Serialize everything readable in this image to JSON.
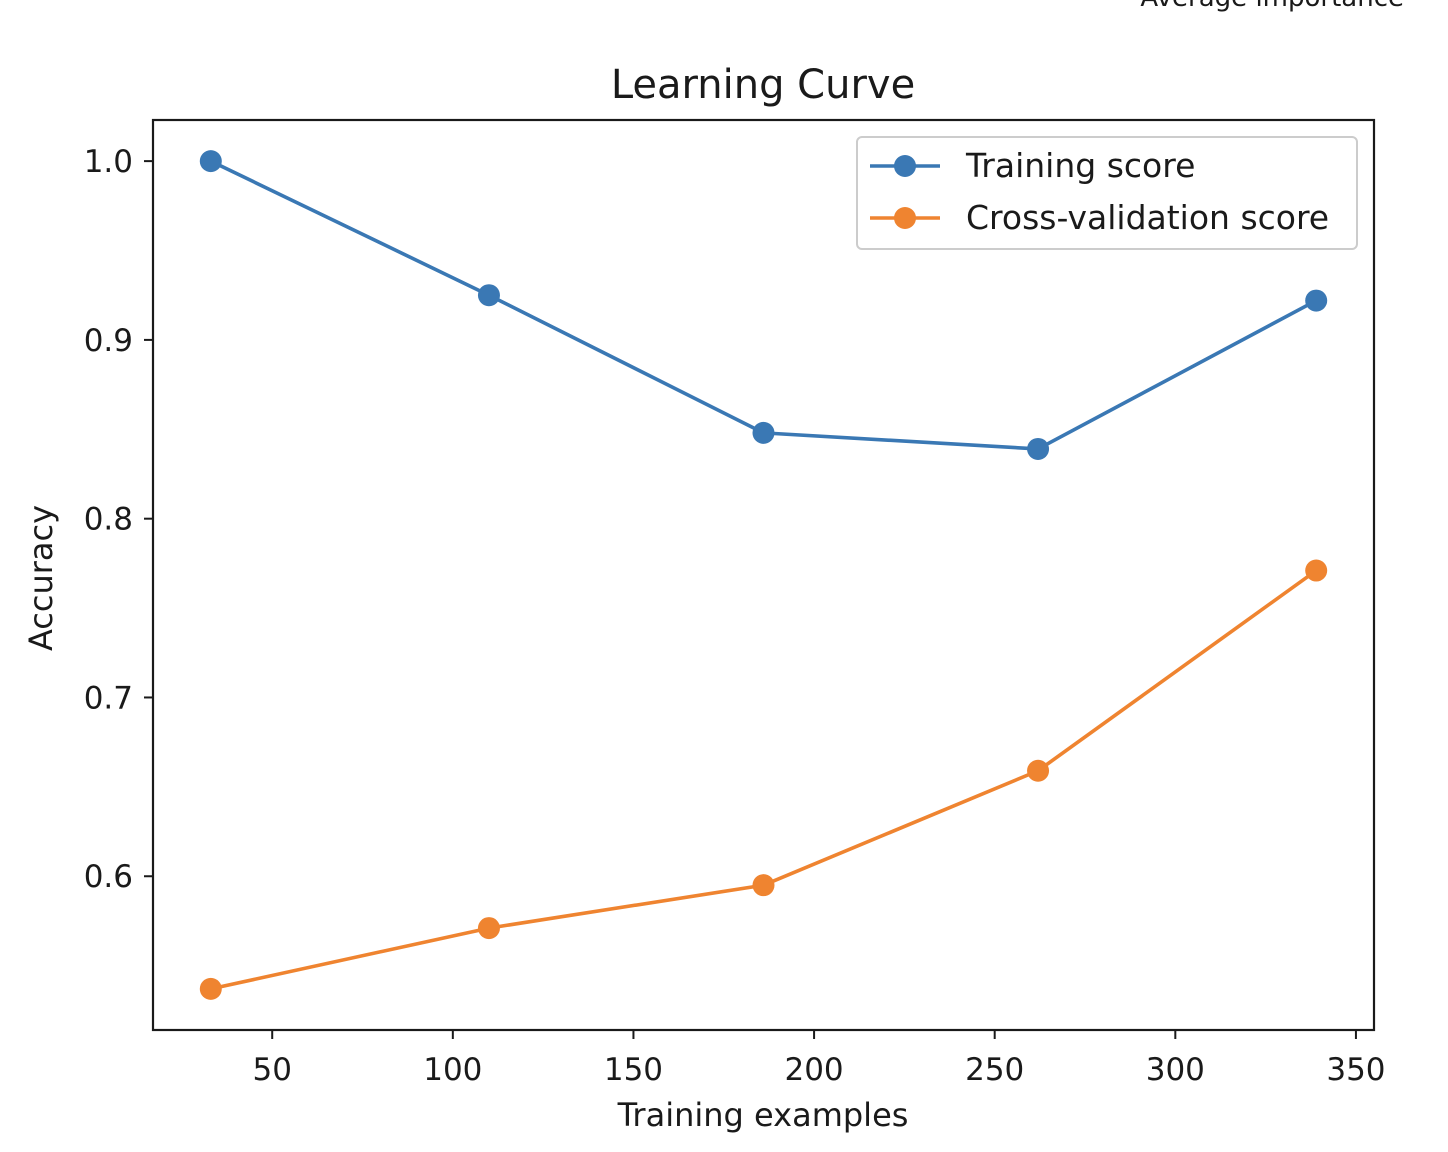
{
  "corner_text": "Average importance",
  "chart_data": {
    "type": "line",
    "title": "Learning Curve",
    "xlabel": "Training examples",
    "ylabel": "Accuracy",
    "x": [
      33,
      110,
      186,
      262,
      339
    ],
    "xlim": [
      17,
      355
    ],
    "ylim": [
      0.514,
      1.023
    ],
    "xticks": [
      50,
      100,
      150,
      200,
      250,
      300,
      350
    ],
    "yticks": [
      0.6,
      0.7,
      0.8,
      0.9,
      1.0
    ],
    "xtick_labels": [
      "50",
      "100",
      "150",
      "200",
      "250",
      "300",
      "350"
    ],
    "ytick_labels": [
      "0.6",
      "0.7",
      "0.8",
      "0.9",
      "1.0"
    ],
    "legend_position": "upper right",
    "grid": false,
    "series": [
      {
        "name": "Training score",
        "color": "#3a78b4",
        "values": [
          1.0,
          0.925,
          0.848,
          0.839,
          0.922
        ]
      },
      {
        "name": "Cross-validation score",
        "color": "#ef8430",
        "values": [
          0.537,
          0.571,
          0.595,
          0.659,
          0.771
        ]
      }
    ]
  }
}
